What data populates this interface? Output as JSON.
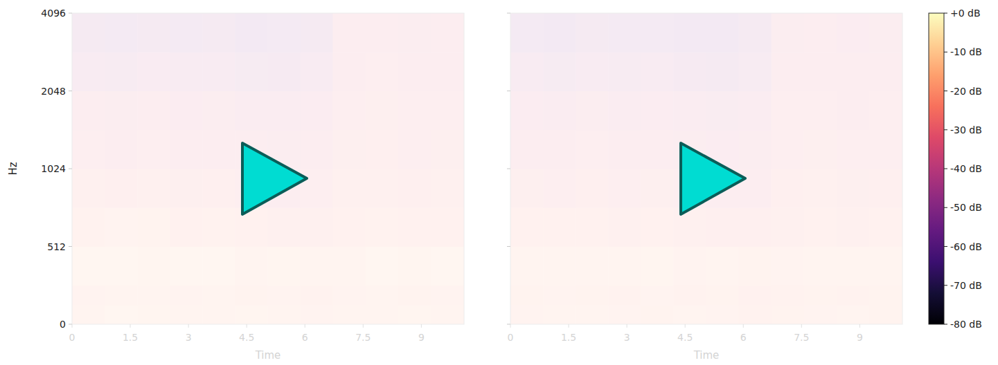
{
  "chart_data": [
    {
      "type": "heatmap",
      "x_label": "Time",
      "y_label": "Hz",
      "xlim": [
        0,
        10.1
      ],
      "xticks": [
        0,
        1.5,
        3,
        4.5,
        6,
        7.5,
        9
      ],
      "ylim": [
        0,
        4096
      ],
      "yticks": [
        0,
        512,
        1024,
        2048,
        4096
      ],
      "log": "y",
      "tick_labels": true,
      "time_edges": [
        0,
        0.84,
        1.68,
        2.52,
        3.36,
        4.2,
        5.04,
        5.88,
        6.72,
        7.56,
        8.4,
        9.24,
        10.1
      ],
      "freq_edges": [
        0,
        128,
        256,
        512,
        724,
        1024,
        1448,
        2048,
        2896,
        4096
      ],
      "cells": [
        [
          -18,
          -16,
          -17,
          -19,
          -18,
          -17,
          -18,
          -20,
          -19,
          -18,
          -17,
          -19
        ],
        [
          -20,
          -19,
          -18,
          -20,
          -19,
          -21,
          -20,
          -22,
          -20,
          -19,
          -21,
          -20
        ],
        [
          -16,
          -15,
          -17,
          -16,
          -15,
          -18,
          -17,
          -19,
          -18,
          -16,
          -17,
          -16
        ],
        [
          -22,
          -20,
          -21,
          -23,
          -22,
          -24,
          -25,
          -26,
          -23,
          -22,
          -24,
          -23
        ],
        [
          -26,
          -27,
          -25,
          -28,
          -27,
          -29,
          -31,
          -30,
          -26,
          -25,
          -27,
          -26
        ],
        [
          -30,
          -31,
          -29,
          -32,
          -31,
          -33,
          -34,
          -33,
          -28,
          -27,
          -29,
          -28
        ],
        [
          -33,
          -34,
          -32,
          -35,
          -34,
          -36,
          -37,
          -35,
          -29,
          -28,
          -30,
          -29
        ],
        [
          -40,
          -42,
          -39,
          -41,
          -40,
          -43,
          -44,
          -41,
          -31,
          -30,
          -32,
          -31
        ],
        [
          -46,
          -48,
          -45,
          -47,
          -46,
          -49,
          -48,
          -45,
          -33,
          -32,
          -34,
          -33
        ]
      ]
    },
    {
      "type": "heatmap",
      "x_label": "Time",
      "xlim": [
        0,
        10.1
      ],
      "xticks": [
        0,
        1.5,
        3,
        4.5,
        6,
        7.5,
        9
      ],
      "ylim": [
        0,
        4096
      ],
      "yticks": [
        0,
        512,
        1024,
        2048,
        4096
      ],
      "log": "y",
      "tick_labels": "x",
      "time_edges": [
        0,
        0.84,
        1.68,
        2.52,
        3.36,
        4.2,
        5.04,
        5.88,
        6.72,
        7.56,
        8.4,
        9.24,
        10.1
      ],
      "freq_edges": [
        0,
        128,
        256,
        512,
        724,
        1024,
        1448,
        2048,
        2896,
        4096
      ],
      "cells": [
        [
          -20,
          -19,
          -18,
          -20,
          -21,
          -19,
          -20,
          -22,
          -21,
          -20,
          -19,
          -21
        ],
        [
          -21,
          -20,
          -21,
          -22,
          -20,
          -22,
          -21,
          -23,
          -22,
          -21,
          -22,
          -21
        ],
        [
          -19,
          -18,
          -19,
          -18,
          -17,
          -20,
          -19,
          -21,
          -20,
          -18,
          -19,
          -18
        ],
        [
          -24,
          -23,
          -24,
          -25,
          -24,
          -26,
          -27,
          -27,
          -25,
          -24,
          -25,
          -24
        ],
        [
          -28,
          -29,
          -27,
          -29,
          -28,
          -30,
          -32,
          -31,
          -27,
          -26,
          -28,
          -27
        ],
        [
          -31,
          -32,
          -30,
          -33,
          -32,
          -34,
          -35,
          -34,
          -29,
          -28,
          -30,
          -29
        ],
        [
          -35,
          -36,
          -34,
          -36,
          -35,
          -37,
          -38,
          -36,
          -30,
          -29,
          -31,
          -30
        ],
        [
          -41,
          -43,
          -40,
          -42,
          -41,
          -44,
          -45,
          -42,
          -32,
          -31,
          -33,
          -32
        ],
        [
          -47,
          -49,
          -46,
          -48,
          -47,
          -50,
          -49,
          -46,
          -34,
          -33,
          -35,
          -34
        ]
      ],
      "colorbar_range": [
        -80,
        0
      ],
      "colorbar_ticks": [
        {
          "value": 0,
          "label": "+0 dB"
        },
        {
          "value": -10,
          "label": "-10 dB"
        },
        {
          "value": -20,
          "label": "-20 dB"
        },
        {
          "value": -30,
          "label": "-30 dB"
        },
        {
          "value": -40,
          "label": "-40 dB"
        },
        {
          "value": -50,
          "label": "-50 dB"
        },
        {
          "value": -60,
          "label": "-60 dB"
        },
        {
          "value": -70,
          "label": "-70 dB"
        },
        {
          "value": -80,
          "label": "-80 dB"
        }
      ]
    }
  ]
}
